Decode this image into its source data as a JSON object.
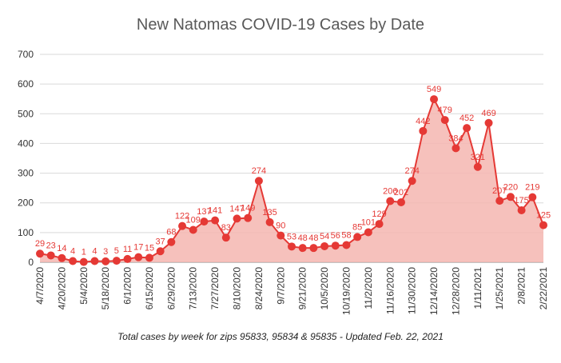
{
  "colors": {
    "series": "#e53935",
    "area": "#f4b6b0",
    "grid": "#d9d9d9",
    "axis_text": "#333333",
    "label_text": "#e53935",
    "title_text": "#595959"
  },
  "chart_data": {
    "type": "area",
    "title": "New Natomas COVID-19 Cases by Date",
    "subtitle": "Total cases by week for zips 95833, 95834 & 95835 - Updated Feb. 22, 2021",
    "xlabel": "",
    "ylabel": "",
    "ylim": [
      0,
      700
    ],
    "yticks": [
      0,
      100,
      200,
      300,
      400,
      500,
      600,
      700
    ],
    "grid": true,
    "legend": "none",
    "x": [
      "4/7/2020",
      "4/13/2020",
      "4/20/2020",
      "4/27/2020",
      "5/4/2020",
      "5/11/2020",
      "5/18/2020",
      "5/25/2020",
      "6/1/2020",
      "6/8/2020",
      "6/15/2020",
      "6/22/2020",
      "6/29/2020",
      "7/6/2020",
      "7/13/2020",
      "7/20/2020",
      "7/27/2020",
      "8/3/2020",
      "8/10/2020",
      "8/17/2020",
      "8/24/2020",
      "8/31/2020",
      "9/7/2020",
      "9/14/2020",
      "9/21/2020",
      "9/28/2020",
      "10/5/2020",
      "10/12/2020",
      "10/19/2020",
      "10/26/2020",
      "11/2/2020",
      "11/9/2020",
      "11/16/2020",
      "11/23/2020",
      "11/30/2020",
      "12/7/2020",
      "12/14/2020",
      "12/21/2020",
      "12/28/2020",
      "1/4/2021",
      "1/11/2021",
      "1/18/2021",
      "1/25/2021",
      "2/1/2021",
      "2/8/2021",
      "2/15/2021",
      "2/22/2021"
    ],
    "x_tick_labels": [
      "4/7/2020",
      "4/20/2020",
      "5/4/2020",
      "5/18/2020",
      "6/1/2020",
      "6/15/2020",
      "6/29/2020",
      "7/13/2020",
      "7/27/2020",
      "8/10/2020",
      "8/24/2020",
      "9/7/2020",
      "9/21/2020",
      "10/5/2020",
      "10/19/2020",
      "11/2/2020",
      "11/16/2020",
      "11/30/2020",
      "12/14/2020",
      "12/28/2020",
      "1/11/2021",
      "1/25/2021",
      "2/8/2021",
      "2/22/2021"
    ],
    "values": [
      29,
      23,
      14,
      4,
      1,
      4,
      3,
      5,
      11,
      17,
      15,
      37,
      68,
      122,
      109,
      137,
      141,
      83,
      147,
      149,
      274,
      135,
      90,
      53,
      48,
      48,
      54,
      56,
      58,
      85,
      101,
      129,
      206,
      202,
      274,
      442,
      549,
      479,
      384,
      452,
      321,
      469,
      207,
      220,
      175,
      219,
      125
    ]
  }
}
